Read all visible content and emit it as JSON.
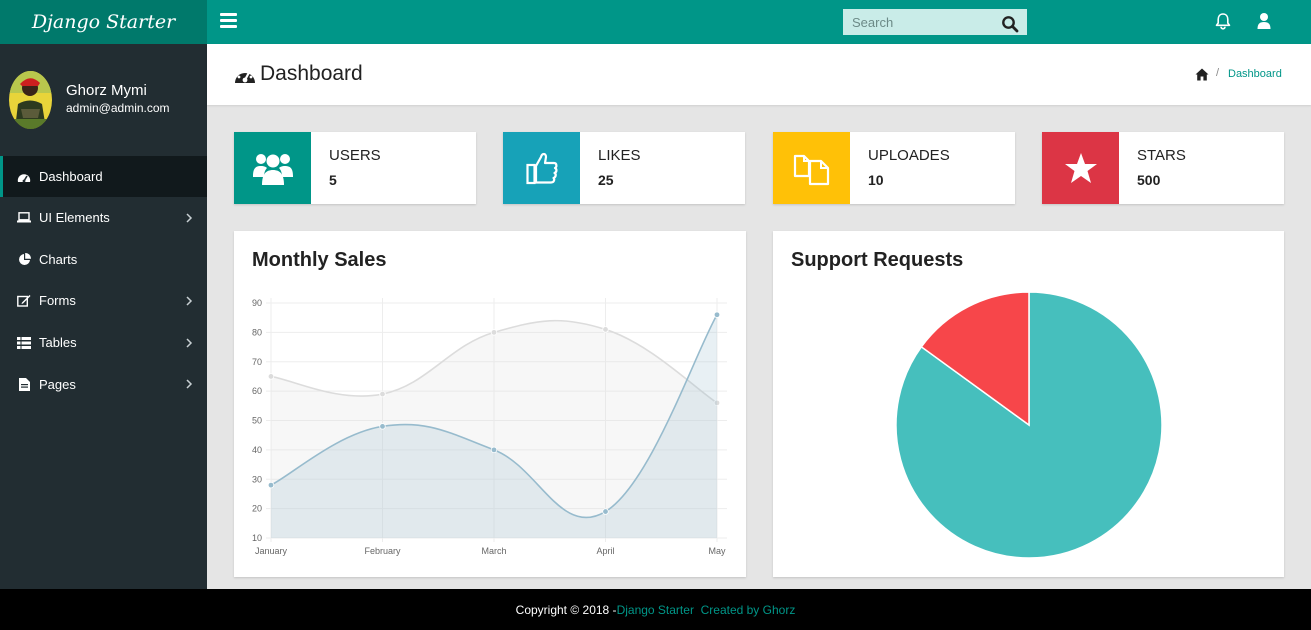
{
  "brand": {
    "title": "Django Starter"
  },
  "topbar": {
    "menu_icon": "hamburger-icon",
    "search": {
      "placeholder": "Search",
      "value": "",
      "icon": "search-icon"
    },
    "notification_icon": "bell-icon",
    "user_icon": "user-icon"
  },
  "profile": {
    "name": "Ghorz Mymi",
    "email": "admin@admin.com"
  },
  "sidebar": {
    "items": [
      {
        "label": "Dashboard",
        "icon": "gauge-icon",
        "active": true,
        "has_children": false
      },
      {
        "label": "UI Elements",
        "icon": "laptop-icon",
        "active": false,
        "has_children": true
      },
      {
        "label": "Charts",
        "icon": "pie-chart-icon",
        "active": false,
        "has_children": false
      },
      {
        "label": "Forms",
        "icon": "edit-icon",
        "active": false,
        "has_children": true
      },
      {
        "label": "Tables",
        "icon": "table-icon",
        "active": false,
        "has_children": true
      },
      {
        "label": "Pages",
        "icon": "file-icon",
        "active": false,
        "has_children": true
      }
    ]
  },
  "page": {
    "title": "Dashboard",
    "icon": "gauge-icon",
    "breadcrumb": {
      "home_icon": "home-icon",
      "separator": "/",
      "current": "Dashboard"
    }
  },
  "stats": [
    {
      "label": "USERS",
      "value": "5",
      "icon": "users-icon",
      "color": "#009688"
    },
    {
      "label": "LIKES",
      "value": "25",
      "icon": "thumbs-up-icon",
      "color": "#17a2b8"
    },
    {
      "label": "UPLOADES",
      "value": "10",
      "icon": "files-icon",
      "color": "#ffc107"
    },
    {
      "label": "STARS",
      "value": "500",
      "icon": "star-icon",
      "color": "#dc3545"
    }
  ],
  "sales_panel": {
    "title": "Monthly Sales"
  },
  "support_panel": {
    "title": "Support Requests"
  },
  "chart_data": [
    {
      "type": "line",
      "title": "Monthly Sales",
      "categories": [
        "January",
        "February",
        "March",
        "April",
        "May"
      ],
      "series": [
        {
          "values": [
            65,
            59,
            80,
            81,
            56
          ],
          "color": "#dcdcdc"
        },
        {
          "values": [
            28,
            48,
            40,
            19,
            86
          ],
          "color": "#97bbcd"
        }
      ],
      "ylim": [
        10,
        90
      ],
      "yticks": [
        10,
        20,
        30,
        40,
        50,
        60,
        70,
        80,
        90
      ],
      "grid": true,
      "fill": true
    },
    {
      "type": "pie",
      "title": "Support Requests",
      "slices": [
        {
          "value": 85,
          "color": "#46bfbd"
        },
        {
          "value": 15,
          "color": "#f7464a"
        }
      ]
    }
  ],
  "footer": {
    "copyright": "Copyright © 2018 - ",
    "link1": "Django Starter",
    "link2": "Created by Ghorz"
  }
}
